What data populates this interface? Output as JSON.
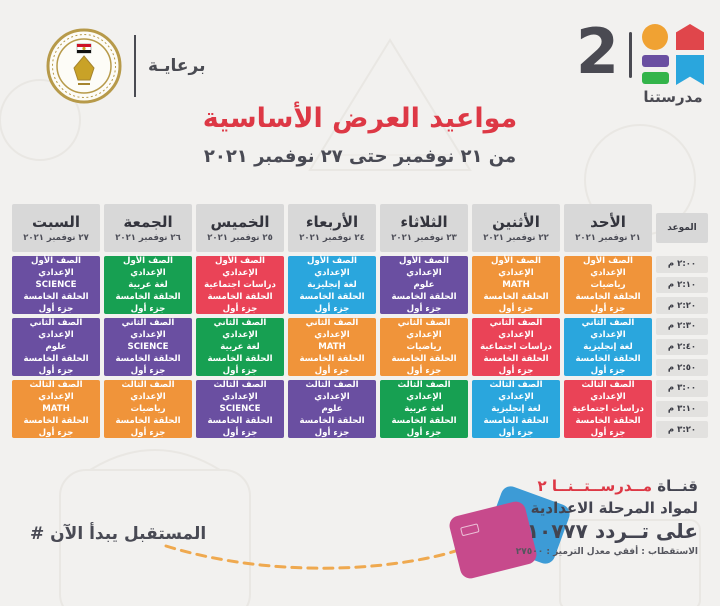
{
  "header": {
    "sponsor_label": "برعايـة",
    "ministry_logo": "شعار وزارة التربية والتعليم",
    "channel_number": "2",
    "channel_name": "مدرستنا"
  },
  "title": {
    "main": "مواعيد العرض الأساسية",
    "subtitle": "من ٢١ نوفمبر حتى ٢٧ نوفمبر ٢٠٢١"
  },
  "colors": {
    "background": "#f2f1ef",
    "title_red": "#dd3845",
    "dark_text": "#434450",
    "header_gray": "#d8d8d8",
    "time_gray": "#e2e1df",
    "subjects": {
      "orange": "#f0943a",
      "blue": "#2aa6dd",
      "red": "#ea4357",
      "green": "#17a052",
      "purple": "#6a4fa1"
    }
  },
  "schedule": {
    "time_label": "الموعد",
    "times": [
      "٢:٠٠ م",
      "٢:١٠ م",
      "٢:٢٠ م",
      "٢:٣٠ م",
      "٢:٤٠ م",
      "٢:٥٠ م",
      "٣:٠٠ م",
      "٣:١٠ م",
      "٣:٢٠ م"
    ],
    "days": [
      {
        "name": "الأحد",
        "date": "٢١ نوفمبر ٢٠٢١",
        "cells": [
          {
            "grade": "الصف الأول الإعدادي",
            "subject": "رياضيات",
            "episode": "الحلقة الخامسة",
            "part": "جزء أول",
            "color": "orange"
          },
          {
            "grade": "الصف الثاني الإعدادي",
            "subject": "لغة إنجليزية",
            "episode": "الحلقة الخامسة",
            "part": "جزء أول",
            "color": "blue"
          },
          {
            "grade": "الصف الثالث الإعدادي",
            "subject": "دراسات اجتماعية",
            "episode": "الحلقة الخامسة",
            "part": "جزء أول",
            "color": "red"
          }
        ]
      },
      {
        "name": "الأثنين",
        "date": "٢٢ نوفمبر ٢٠٢١",
        "cells": [
          {
            "grade": "الصف الأول الإعدادي",
            "subject": "MATH",
            "episode": "الحلقة الخامسة",
            "part": "جزء أول",
            "color": "orange"
          },
          {
            "grade": "الصف الثاني الإعدادي",
            "subject": "دراسات اجتماعية",
            "episode": "الحلقة الخامسة",
            "part": "جزء أول",
            "color": "red"
          },
          {
            "grade": "الصف الثالث الإعدادي",
            "subject": "لغة إنجليزية",
            "episode": "الحلقة الخامسة",
            "part": "جزء أول",
            "color": "blue"
          }
        ]
      },
      {
        "name": "الثلاثاء",
        "date": "٢٣ نوفمبر ٢٠٢١",
        "cells": [
          {
            "grade": "الصف الأول الإعدادي",
            "subject": "علوم",
            "episode": "الحلقة الخامسة",
            "part": "جزء أول",
            "color": "purple"
          },
          {
            "grade": "الصف الثاني الإعدادي",
            "subject": "رياضيات",
            "episode": "الحلقة الخامسة",
            "part": "جزء أول",
            "color": "orange"
          },
          {
            "grade": "الصف الثالث الإعدادي",
            "subject": "لغة عربية",
            "episode": "الحلقة الخامسة",
            "part": "جزء أول",
            "color": "green"
          }
        ]
      },
      {
        "name": "الأربعاء",
        "date": "٢٤ نوفمبر ٢٠٢١",
        "cells": [
          {
            "grade": "الصف الأول الإعدادي",
            "subject": "لغة إنجليزية",
            "episode": "الحلقة الخامسة",
            "part": "جزء أول",
            "color": "blue"
          },
          {
            "grade": "الصف الثاني الإعدادي",
            "subject": "MATH",
            "episode": "الحلقة الخامسة",
            "part": "جزء أول",
            "color": "orange"
          },
          {
            "grade": "الصف الثالث الإعدادي",
            "subject": "علوم",
            "episode": "الحلقة الخامسة",
            "part": "جزء أول",
            "color": "purple"
          }
        ]
      },
      {
        "name": "الخميس",
        "date": "٢٥ نوفمبر ٢٠٢١",
        "cells": [
          {
            "grade": "الصف الأول الإعدادي",
            "subject": "دراسات اجتماعية",
            "episode": "الحلقة الخامسة",
            "part": "جزء أول",
            "color": "red"
          },
          {
            "grade": "الصف الثاني الإعدادي",
            "subject": "لغة عربية",
            "episode": "الحلقة الخامسة",
            "part": "جزء أول",
            "color": "green"
          },
          {
            "grade": "الصف الثالث الإعدادي",
            "subject": "SCIENCE",
            "episode": "الحلقة الخامسة",
            "part": "جزء أول",
            "color": "purple"
          }
        ]
      },
      {
        "name": "الجمعة",
        "date": "٢٦ نوفمبر ٢٠٢١",
        "cells": [
          {
            "grade": "الصف الأول الإعدادي",
            "subject": "لغة عربية",
            "episode": "الحلقة الخامسة",
            "part": "جزء أول",
            "color": "green"
          },
          {
            "grade": "الصف الثاني الإعدادي",
            "subject": "SCIENCE",
            "episode": "الحلقة الخامسة",
            "part": "جزء أول",
            "color": "purple"
          },
          {
            "grade": "الصف الثالث الإعدادي",
            "subject": "رياضيات",
            "episode": "الحلقة الخامسة",
            "part": "جزء أول",
            "color": "orange"
          }
        ]
      },
      {
        "name": "السبت",
        "date": "٢٧ نوفمبر ٢٠٢١",
        "cells": [
          {
            "grade": "الصف الأول الإعدادي",
            "subject": "SCIENCE",
            "episode": "الحلقة الخامسة",
            "part": "جزء أول",
            "color": "purple"
          },
          {
            "grade": "الصف الثاني الإعدادي",
            "subject": "علوم",
            "episode": "الحلقة الخامسة",
            "part": "جزء أول",
            "color": "purple"
          },
          {
            "grade": "الصف الثالث الإعدادي",
            "subject": "MATH",
            "episode": "الحلقة الخامسة",
            "part": "جزء أول",
            "color": "orange"
          }
        ]
      }
    ]
  },
  "footer": {
    "hashtag": "# المستقبل يبدأ الآن",
    "channel_word": "قنــاة ",
    "channel_name_red": "مــدرســتــنــا ٢",
    "line2": "لمواد المرحلة الاعدادية",
    "line3": "على تــردد ١٠٧٧٧",
    "technical": "الاستقطاب : أفقي   معدل الترميز : ٢٧٥٠٠"
  }
}
